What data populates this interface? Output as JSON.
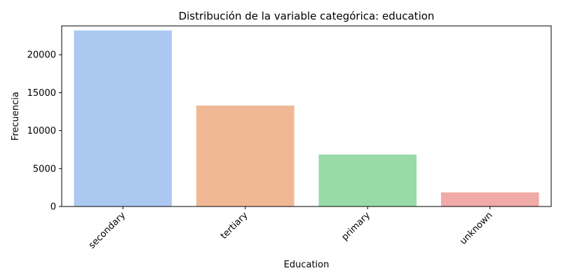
{
  "chart_data": {
    "type": "bar",
    "title": "Distribución de la variable categórica: education",
    "xlabel": "Education",
    "ylabel": "Frecuencia",
    "categories": [
      "secondary",
      "tertiary",
      "primary",
      "unknown"
    ],
    "values": [
      23202,
      13301,
      6851,
      1857
    ],
    "colors": [
      "#abc9f0",
      "#f0b894",
      "#98dba8",
      "#f0aaa7"
    ],
    "ylim": [
      0,
      23800
    ],
    "yticks": [
      0,
      5000,
      10000,
      15000,
      20000
    ],
    "grid": false,
    "legend": "none"
  }
}
